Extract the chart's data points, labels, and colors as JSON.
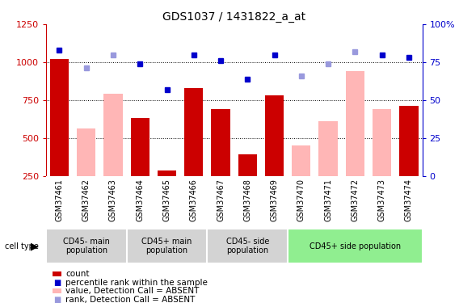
{
  "title": "GDS1037 / 1431822_a_at",
  "samples": [
    "GSM37461",
    "GSM37462",
    "GSM37463",
    "GSM37464",
    "GSM37465",
    "GSM37466",
    "GSM37467",
    "GSM37468",
    "GSM37469",
    "GSM37470",
    "GSM37471",
    "GSM37472",
    "GSM37473",
    "GSM37474"
  ],
  "count_values": [
    1020,
    null,
    null,
    630,
    285,
    830,
    690,
    390,
    780,
    null,
    null,
    null,
    null,
    710
  ],
  "absent_value_values": [
    null,
    560,
    790,
    null,
    null,
    null,
    null,
    null,
    null,
    450,
    610,
    940,
    690,
    null
  ],
  "percentile_rank_values": [
    83,
    null,
    null,
    74,
    57,
    80,
    76,
    64,
    80,
    null,
    null,
    null,
    80,
    78
  ],
  "absent_rank_values": [
    null,
    71,
    80,
    null,
    null,
    null,
    null,
    null,
    null,
    66,
    74,
    82,
    null,
    null
  ],
  "ylim_left": [
    250,
    1250
  ],
  "ylim_right": [
    0,
    100
  ],
  "yticks_left": [
    250,
    500,
    750,
    1000,
    1250
  ],
  "yticks_right": [
    0,
    25,
    50,
    75,
    100
  ],
  "cell_type_groups": [
    {
      "label": "CD45- main\npopulation",
      "start": 0,
      "end": 3,
      "color": "#d3d3d3"
    },
    {
      "label": "CD45+ main\npopulation",
      "start": 3,
      "end": 6,
      "color": "#d3d3d3"
    },
    {
      "label": "CD45- side\npopulation",
      "start": 6,
      "end": 9,
      "color": "#d3d3d3"
    },
    {
      "label": "CD45+ side population",
      "start": 9,
      "end": 14,
      "color": "#90ee90"
    }
  ],
  "bar_color_dark_red": "#cc0000",
  "bar_color_light_pink": "#ffb6b6",
  "dot_color_dark_blue": "#0000cc",
  "dot_color_light_blue": "#9999dd",
  "background_color": "#ffffff",
  "left_axis_color": "#cc0000",
  "right_axis_color": "#0000cc",
  "xtick_bg": "#e0e0e0",
  "legend_items": [
    {
      "color": "#cc0000",
      "type": "rect",
      "label": "count"
    },
    {
      "color": "#0000cc",
      "type": "square",
      "label": "percentile rank within the sample"
    },
    {
      "color": "#ffb6b6",
      "type": "rect",
      "label": "value, Detection Call = ABSENT"
    },
    {
      "color": "#9999dd",
      "type": "square",
      "label": "rank, Detection Call = ABSENT"
    }
  ]
}
